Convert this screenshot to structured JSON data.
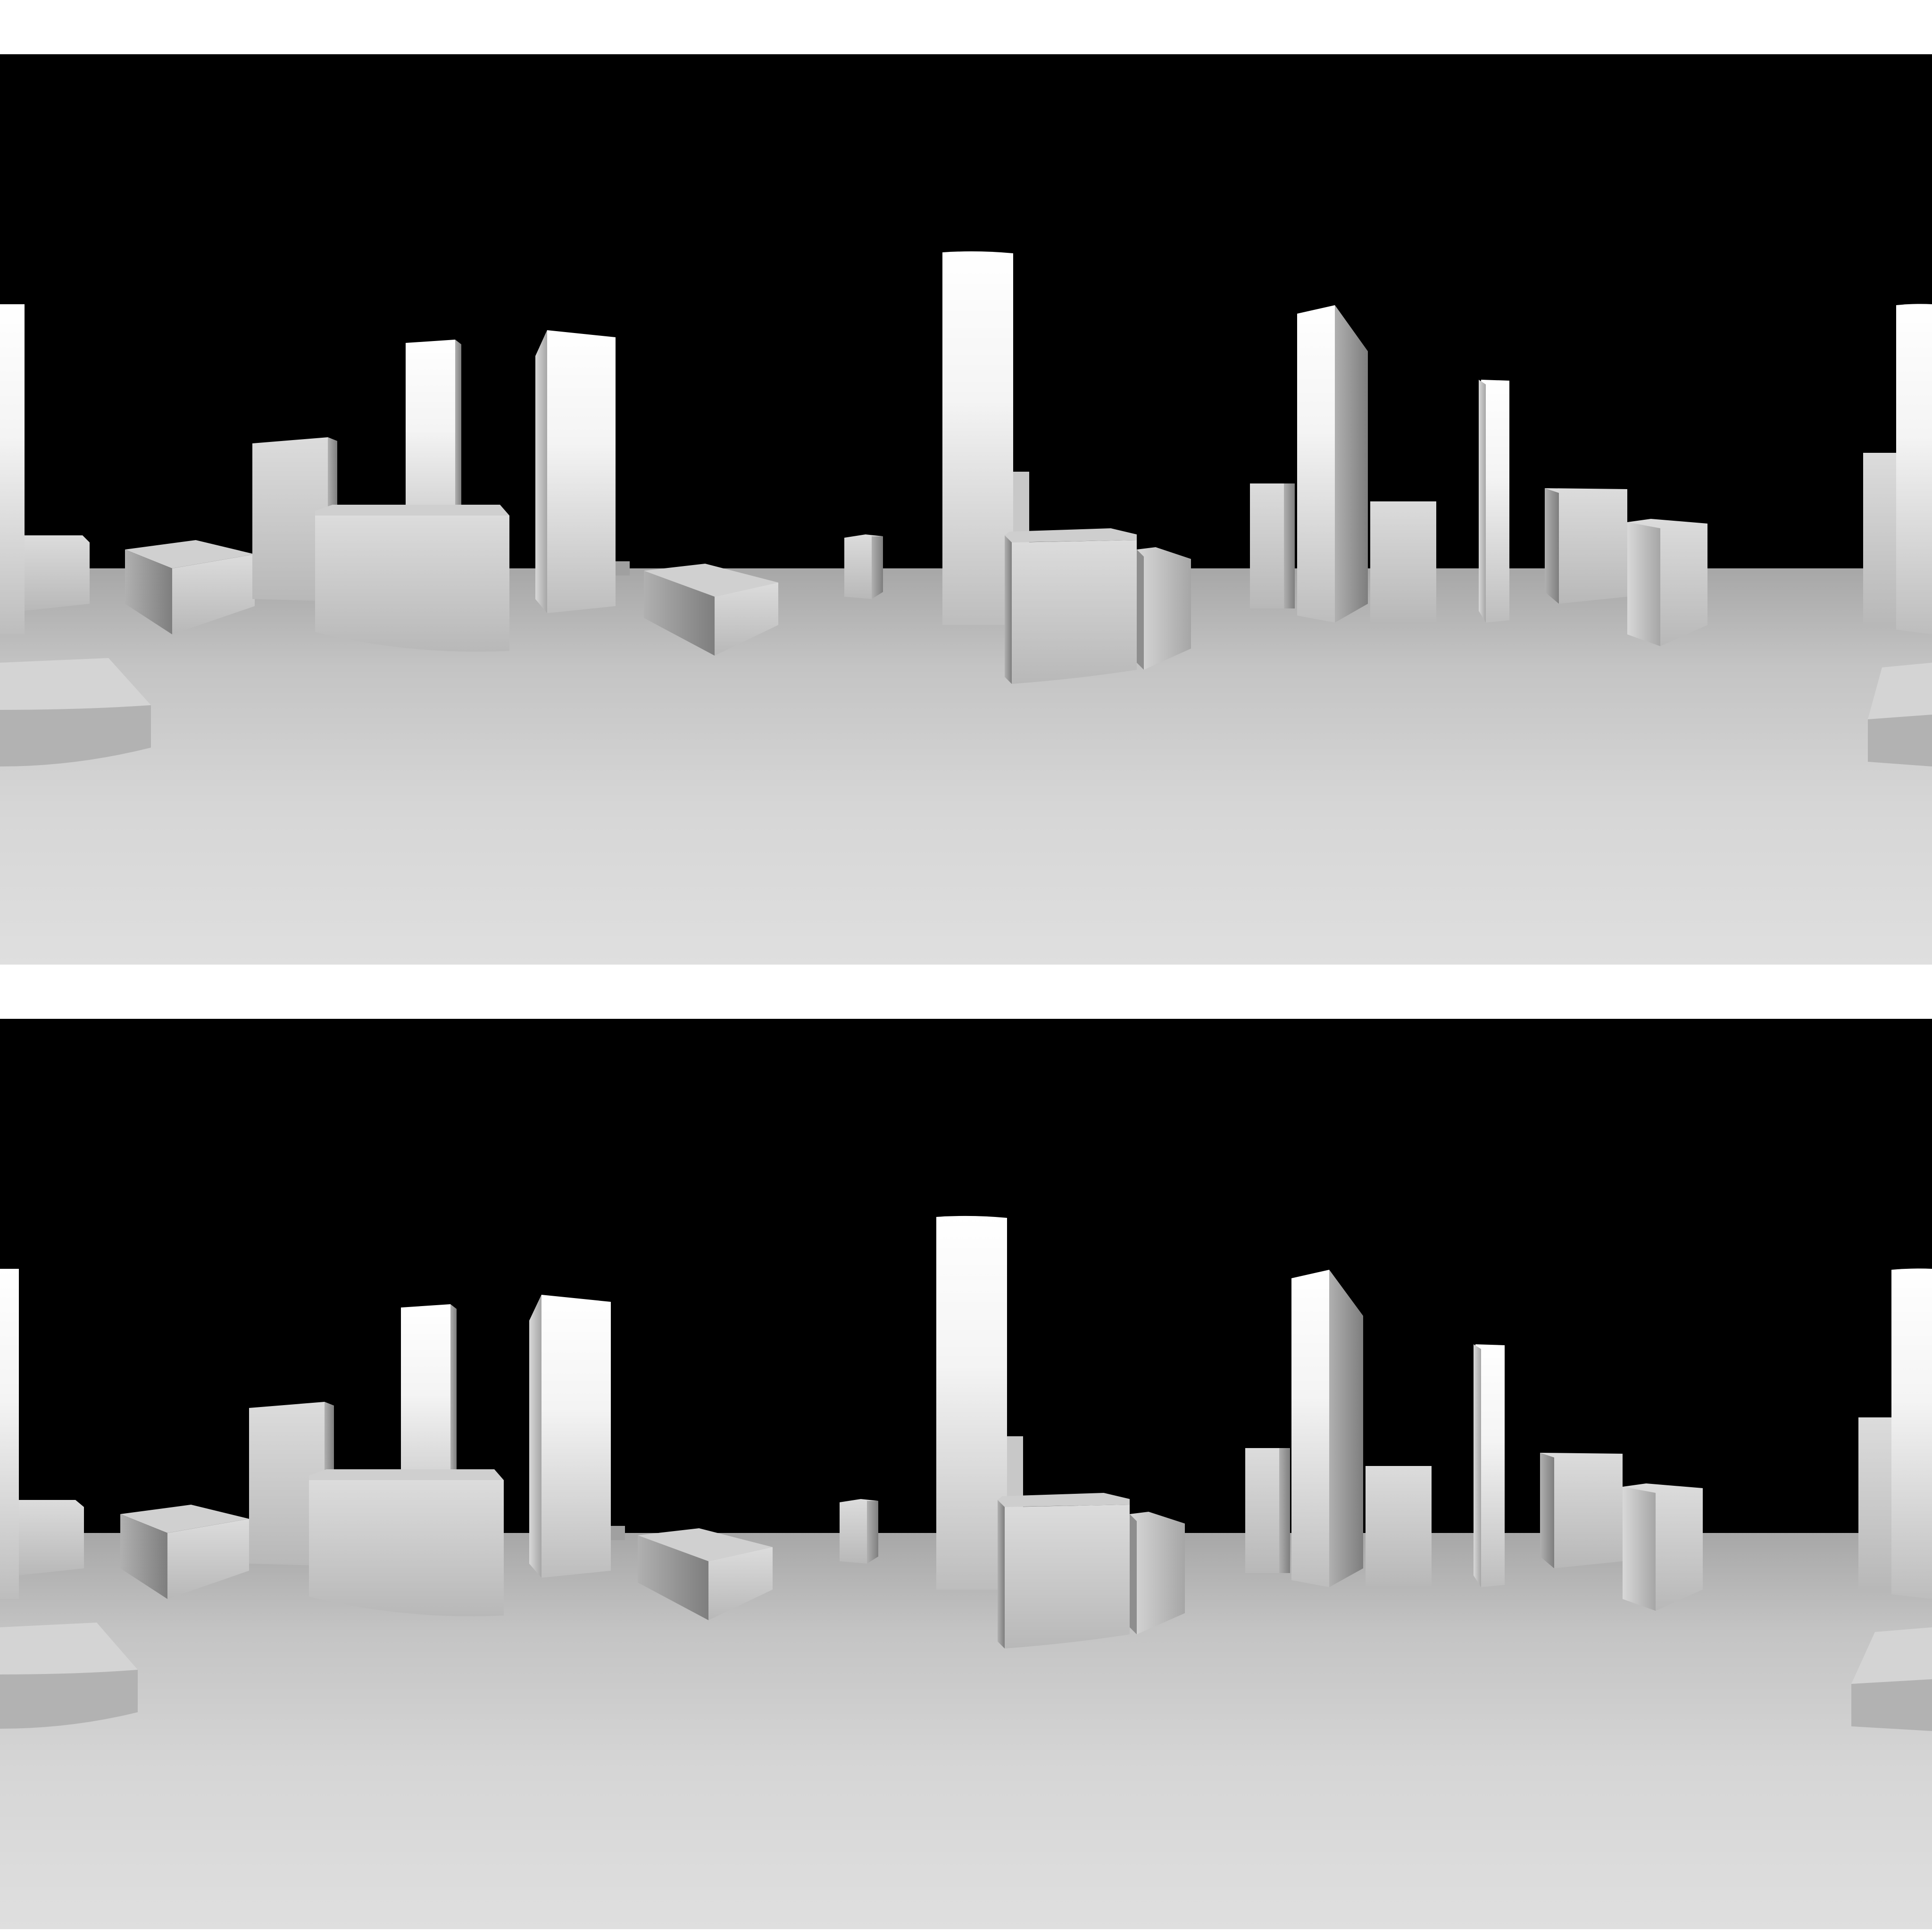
{
  "scene": {
    "description_visible_text": "",
    "panel_count": 2,
    "colors": {
      "background": "#ffffff",
      "sky": "#000000",
      "ground_far": "#a9a9a9",
      "ground_near": "#dedede",
      "building_light": "#ffffff",
      "building_mid": "#c9c9c9",
      "building_dark": "#8a8a8a"
    }
  },
  "panels": [
    {
      "name": "top-panorama"
    },
    {
      "name": "bottom-panorama"
    }
  ]
}
